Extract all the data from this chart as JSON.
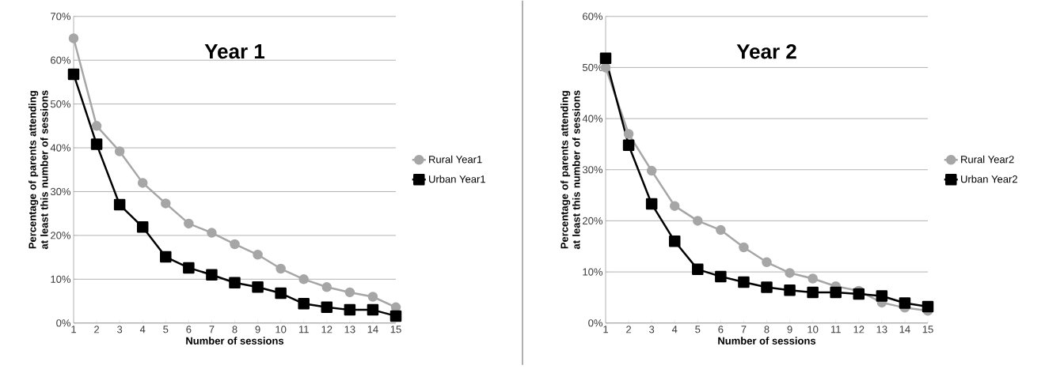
{
  "chart_data": [
    {
      "type": "line",
      "title": "Year 1",
      "xlabel": "Number of sessions",
      "ylabel": "Percentage of parents attending at least this number of sessions",
      "categories": [
        "1",
        "2",
        "3",
        "4",
        "5",
        "6",
        "7",
        "8",
        "9",
        "10",
        "11",
        "12",
        "13",
        "14",
        "15"
      ],
      "series": [
        {
          "name": "Rural Year1",
          "color": "#a6a6a6",
          "marker": "circle",
          "values": [
            65,
            45,
            39.2,
            32,
            27.3,
            22.7,
            20.6,
            18,
            15.6,
            12.4,
            10,
            8.2,
            7,
            6,
            3.6
          ]
        },
        {
          "name": "Urban Year1",
          "color": "#000000",
          "marker": "square",
          "values": [
            56.8,
            40.8,
            27,
            21.9,
            15.1,
            12.6,
            11,
            9.2,
            8.2,
            6.8,
            4.4,
            3.6,
            3,
            3,
            1.6
          ]
        }
      ],
      "ylim": [
        0,
        70
      ],
      "yticks": [
        {
          "value": 0,
          "label": "0%"
        },
        {
          "value": 10,
          "label": "10%"
        },
        {
          "value": 20,
          "label": "20%"
        },
        {
          "value": 30,
          "label": "30%"
        },
        {
          "value": 40,
          "label": "40%"
        },
        {
          "value": 50,
          "label": "50%"
        },
        {
          "value": 60,
          "label": "60%"
        },
        {
          "value": 70,
          "label": "70%"
        }
      ],
      "grid": "y",
      "legend": "right"
    },
    {
      "type": "line",
      "title": "Year 2",
      "xlabel": "Number of sessions",
      "ylabel": "Percentage of parents attending at least this number of sessions",
      "categories": [
        "1",
        "2",
        "3",
        "4",
        "5",
        "6",
        "7",
        "8",
        "9",
        "10",
        "11",
        "12",
        "13",
        "14",
        "15"
      ],
      "series": [
        {
          "name": "Rural Year2",
          "color": "#a6a6a6",
          "marker": "circle",
          "values": [
            50,
            37,
            29.8,
            22.9,
            20,
            18.2,
            14.8,
            11.9,
            9.8,
            8.7,
            7.2,
            6.3,
            4,
            3,
            2.4
          ]
        },
        {
          "name": "Urban Year2",
          "color": "#000000",
          "marker": "square",
          "values": [
            51.8,
            34.8,
            23.3,
            16,
            10.5,
            9.1,
            8,
            7,
            6.4,
            6,
            6,
            5.7,
            5.3,
            3.9,
            3.2
          ]
        }
      ],
      "ylim": [
        0,
        60
      ],
      "yticks": [
        {
          "value": 0,
          "label": "0%"
        },
        {
          "value": 10,
          "label": "10%"
        },
        {
          "value": 20,
          "label": "20%"
        },
        {
          "value": 30,
          "label": "30%"
        },
        {
          "value": 40,
          "label": "40%"
        },
        {
          "value": 50,
          "label": "50%"
        },
        {
          "value": 60,
          "label": "60%"
        }
      ],
      "grid": "y",
      "legend": "right"
    }
  ]
}
